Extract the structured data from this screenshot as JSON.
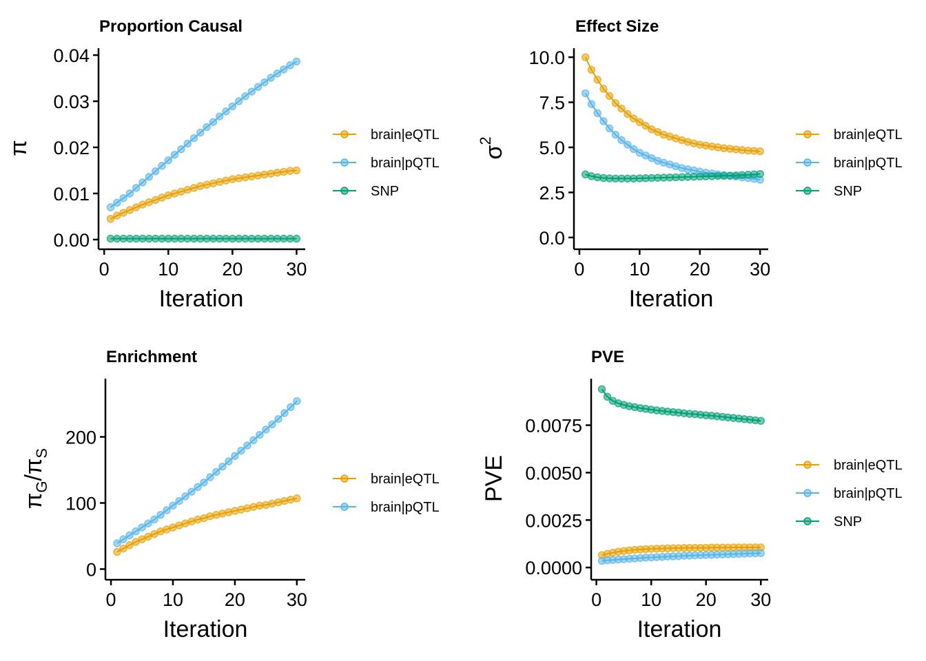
{
  "colors": {
    "brain|eQTL": "#E69F00",
    "brain|pQTL": "#56B4E9",
    "SNP": "#009E73"
  },
  "chart_data": [
    {
      "type": "line",
      "title": "Proportion Causal",
      "xlabel": "Iteration",
      "ylabel": "π",
      "xlim": [
        0,
        30
      ],
      "ylim": [
        -0.0015,
        0.0415
      ],
      "xticks": [
        0,
        10,
        20,
        30
      ],
      "xtick_labels": [
        "0",
        "10",
        "20",
        "30"
      ],
      "yticks": [
        0,
        0.01,
        0.02,
        0.03,
        0.04
      ],
      "ytick_labels": [
        "0.00",
        "0.01",
        "0.02",
        "0.03",
        "0.04"
      ],
      "x": [
        1,
        2,
        3,
        4,
        5,
        6,
        7,
        8,
        9,
        10,
        11,
        12,
        13,
        14,
        15,
        16,
        17,
        18,
        19,
        20,
        21,
        22,
        23,
        24,
        25,
        26,
        27,
        28,
        29,
        30
      ],
      "series": [
        {
          "name": "brain|eQTL",
          "values": [
            0.0045,
            0.0052,
            0.0058,
            0.0064,
            0.007,
            0.0076,
            0.0081,
            0.0086,
            0.0091,
            0.0096,
            0.01,
            0.0104,
            0.0108,
            0.0112,
            0.0116,
            0.0119,
            0.0122,
            0.0125,
            0.0128,
            0.0131,
            0.0133,
            0.0135,
            0.0137,
            0.0139,
            0.0141,
            0.0143,
            0.0145,
            0.0147,
            0.0149,
            0.015
          ]
        },
        {
          "name": "brain|pQTL",
          "values": [
            0.007,
            0.008,
            0.009,
            0.01,
            0.0112,
            0.0124,
            0.0136,
            0.0148,
            0.016,
            0.0172,
            0.0184,
            0.0196,
            0.0208,
            0.022,
            0.0232,
            0.0244,
            0.0255,
            0.0267,
            0.0278,
            0.0289,
            0.03,
            0.0311,
            0.0321,
            0.0331,
            0.0341,
            0.0351,
            0.036,
            0.0369,
            0.0378,
            0.0386
          ]
        },
        {
          "name": "SNP",
          "values": [
            0.0002,
            0.0002,
            0.0002,
            0.0002,
            0.0002,
            0.0002,
            0.0002,
            0.0002,
            0.0002,
            0.0002,
            0.0002,
            0.0002,
            0.0002,
            0.0002,
            0.0002,
            0.0002,
            0.0002,
            0.0002,
            0.0002,
            0.0002,
            0.0002,
            0.0002,
            0.0002,
            0.0002,
            0.0002,
            0.0002,
            0.0002,
            0.0002,
            0.0002,
            0.0002
          ]
        }
      ],
      "legend": [
        "brain|eQTL",
        "brain|pQTL",
        "SNP"
      ],
      "legend_position": "right"
    },
    {
      "type": "line",
      "title": "Effect Size",
      "xlabel": "Iteration",
      "ylabel": "σ²",
      "xlim": [
        0,
        30
      ],
      "ylim": [
        -0.5,
        10.5
      ],
      "xticks": [
        0,
        10,
        20,
        30
      ],
      "xtick_labels": [
        "0",
        "10",
        "20",
        "30"
      ],
      "yticks": [
        0,
        2.5,
        5,
        7.5,
        10
      ],
      "ytick_labels": [
        "0.0",
        "2.5",
        "5.0",
        "7.5",
        "10.0"
      ],
      "x": [
        1,
        2,
        3,
        4,
        5,
        6,
        7,
        8,
        9,
        10,
        11,
        12,
        13,
        14,
        15,
        16,
        17,
        18,
        19,
        20,
        21,
        22,
        23,
        24,
        25,
        26,
        27,
        28,
        29,
        30
      ],
      "series": [
        {
          "name": "brain|eQTL",
          "values": [
            10.0,
            9.3,
            8.75,
            8.25,
            7.85,
            7.45,
            7.15,
            6.85,
            6.6,
            6.4,
            6.2,
            6.0,
            5.85,
            5.7,
            5.6,
            5.5,
            5.4,
            5.3,
            5.22,
            5.15,
            5.1,
            5.05,
            5.0,
            4.95,
            4.92,
            4.88,
            4.85,
            4.82,
            4.8,
            4.78
          ]
        },
        {
          "name": "brain|pQTL",
          "values": [
            8.0,
            7.4,
            6.9,
            6.45,
            6.05,
            5.7,
            5.4,
            5.15,
            4.9,
            4.7,
            4.55,
            4.4,
            4.25,
            4.15,
            4.05,
            3.95,
            3.85,
            3.78,
            3.72,
            3.65,
            3.6,
            3.55,
            3.5,
            3.46,
            3.42,
            3.38,
            3.34,
            3.3,
            3.25,
            3.2
          ]
        },
        {
          "name": "SNP",
          "values": [
            3.5,
            3.4,
            3.34,
            3.3,
            3.28,
            3.27,
            3.27,
            3.27,
            3.27,
            3.28,
            3.29,
            3.3,
            3.31,
            3.32,
            3.33,
            3.34,
            3.35,
            3.36,
            3.37,
            3.38,
            3.39,
            3.4,
            3.41,
            3.42,
            3.43,
            3.44,
            3.46,
            3.48,
            3.5,
            3.52
          ]
        }
      ],
      "legend": [
        "brain|eQTL",
        "brain|pQTL",
        "SNP"
      ],
      "legend_position": "right"
    },
    {
      "type": "line",
      "title": "Enrichment",
      "xlabel": "Iteration",
      "ylabel": "πG/πS",
      "xlim": [
        0,
        30
      ],
      "ylim": [
        -12,
        288
      ],
      "xticks": [
        0,
        10,
        20,
        30
      ],
      "xtick_labels": [
        "0",
        "10",
        "20",
        "30"
      ],
      "yticks": [
        0,
        100,
        200
      ],
      "ytick_labels": [
        "0",
        "100",
        "200"
      ],
      "x": [
        1,
        2,
        3,
        4,
        5,
        6,
        7,
        8,
        9,
        10,
        11,
        12,
        13,
        14,
        15,
        16,
        17,
        18,
        19,
        20,
        21,
        22,
        23,
        24,
        25,
        26,
        27,
        28,
        29,
        30
      ],
      "series": [
        {
          "name": "brain|eQTL",
          "values": [
            26,
            31,
            36,
            41,
            45,
            49,
            53,
            57,
            60,
            63,
            66,
            69,
            72,
            75,
            77,
            80,
            82,
            84,
            86,
            88,
            90,
            92,
            94,
            96,
            97,
            99,
            101,
            103,
            105,
            107
          ]
        },
        {
          "name": "brain|pQTL",
          "values": [
            39,
            45,
            51,
            57,
            63,
            69,
            75,
            82,
            89,
            96,
            103,
            110,
            117,
            124,
            131,
            139,
            147,
            155,
            163,
            171,
            179,
            187,
            195,
            203,
            211,
            219,
            227,
            236,
            245,
            254
          ]
        }
      ],
      "legend": [
        "brain|eQTL",
        "brain|pQTL"
      ],
      "legend_position": "right"
    },
    {
      "type": "line",
      "title": "PVE",
      "xlabel": "Iteration",
      "ylabel": "PVE",
      "xlim": [
        0,
        30
      ],
      "ylim": [
        -0.0005,
        0.00995
      ],
      "xticks": [
        0,
        10,
        20,
        30
      ],
      "xtick_labels": [
        "0",
        "10",
        "20",
        "30"
      ],
      "yticks": [
        0,
        0.0025,
        0.005,
        0.0075
      ],
      "ytick_labels": [
        "0.0000",
        "0.0025",
        "0.0050",
        "0.0075"
      ],
      "x": [
        1,
        2,
        3,
        4,
        5,
        6,
        7,
        8,
        9,
        10,
        11,
        12,
        13,
        14,
        15,
        16,
        17,
        18,
        19,
        20,
        21,
        22,
        23,
        24,
        25,
        26,
        27,
        28,
        29,
        30
      ],
      "series": [
        {
          "name": "brain|eQTL",
          "values": [
            0.00065,
            0.00072,
            0.00078,
            0.00083,
            0.00087,
            0.0009,
            0.00093,
            0.00095,
            0.00097,
            0.00098,
            0.00099,
            0.001,
            0.00101,
            0.00102,
            0.00102,
            0.00103,
            0.00103,
            0.00104,
            0.00104,
            0.00104,
            0.00105,
            0.00105,
            0.00105,
            0.00105,
            0.00106,
            0.00106,
            0.00106,
            0.00106,
            0.00106,
            0.00106
          ]
        },
        {
          "name": "brain|pQTL",
          "values": [
            0.00035,
            0.00038,
            0.0004,
            0.00042,
            0.00044,
            0.00046,
            0.00048,
            0.0005,
            0.00052,
            0.00053,
            0.00055,
            0.00056,
            0.00058,
            0.00059,
            0.0006,
            0.00062,
            0.00063,
            0.00064,
            0.00065,
            0.00066,
            0.00067,
            0.00068,
            0.00069,
            0.0007,
            0.00071,
            0.00072,
            0.00073,
            0.00074,
            0.00075,
            0.00076
          ]
        },
        {
          "name": "SNP",
          "values": [
            0.0094,
            0.009,
            0.00878,
            0.00865,
            0.00857,
            0.0085,
            0.00845,
            0.0084,
            0.00836,
            0.00832,
            0.00828,
            0.00825,
            0.00822,
            0.00819,
            0.00816,
            0.00813,
            0.0081,
            0.00808,
            0.00805,
            0.00802,
            0.008,
            0.00797,
            0.00794,
            0.00791,
            0.00788,
            0.00785,
            0.00782,
            0.00779,
            0.00776,
            0.00773
          ]
        }
      ],
      "legend": [
        "brain|eQTL",
        "brain|pQTL",
        "SNP"
      ],
      "legend_position": "right"
    }
  ]
}
